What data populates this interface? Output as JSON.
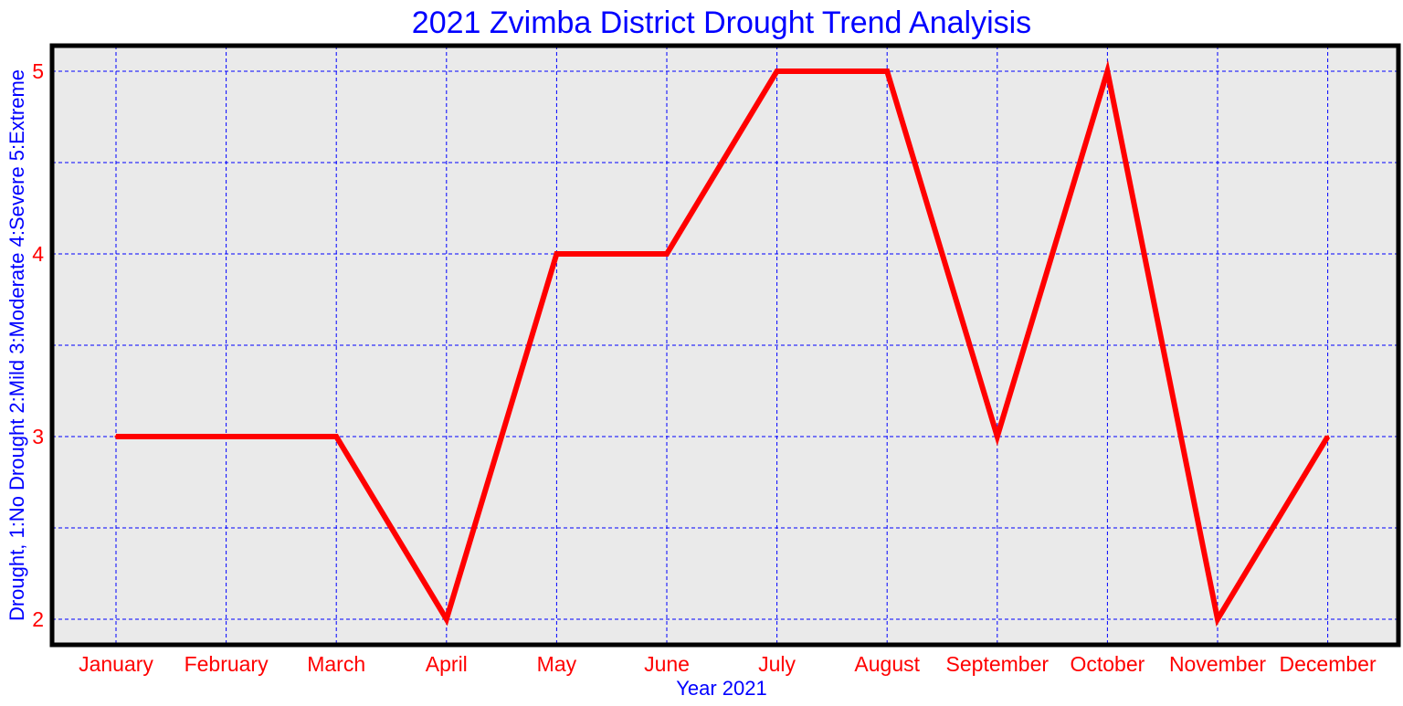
{
  "chart_data": {
    "type": "line",
    "title": "2021 Zvimba District Drought Trend Analyisis",
    "xlabel": "Year 2021",
    "ylabel": "Drought, 1:No Drought 2:Mild 3:Moderate 4:Severe 5:Extreme",
    "categories": [
      "January",
      "February",
      "March",
      "April",
      "May",
      "June",
      "July",
      "August",
      "September",
      "October",
      "November",
      "December"
    ],
    "series": [
      {
        "values": [
          3,
          3,
          3,
          2,
          4,
          4,
          5,
          5,
          3,
          5,
          2,
          3
        ]
      }
    ],
    "ylim": [
      1.86,
      5.14
    ],
    "yticks": [
      2,
      3,
      4,
      5
    ],
    "grid": true,
    "colors": {
      "line": "#ff0000",
      "grid": "#0000ff",
      "plot_background": "#eaeaea",
      "frame": "#000000",
      "title": "#0000ff",
      "axis_label": "#0000ff",
      "tick_label": "#ff0000"
    }
  }
}
